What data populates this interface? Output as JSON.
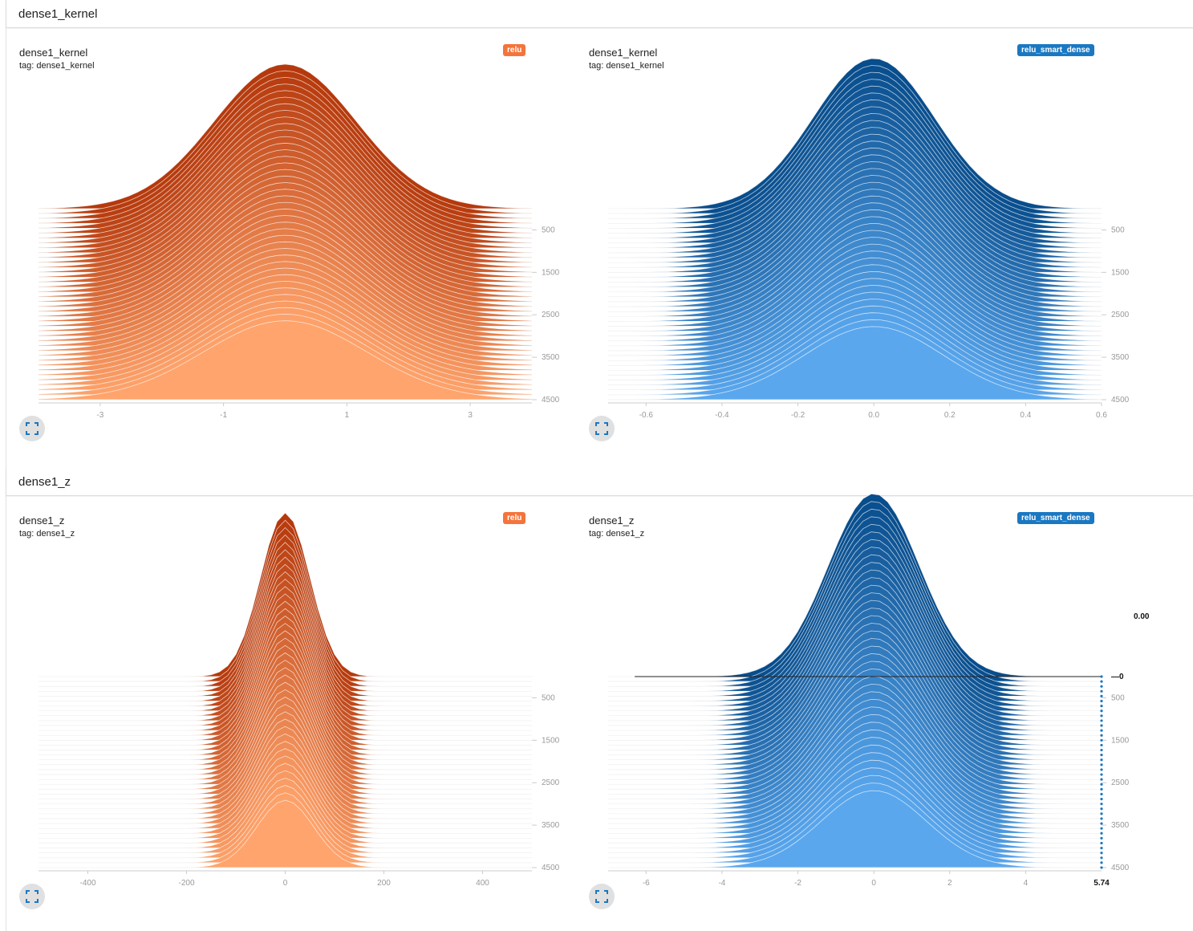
{
  "sections": [
    {
      "title": "dense1_kernel"
    },
    {
      "title": "dense1_z"
    }
  ],
  "cards": [
    {
      "title": "dense1_kernel",
      "tag": "tag: dense1_kernel",
      "run": "relu",
      "run_color": "#f4743b"
    },
    {
      "title": "dense1_kernel",
      "tag": "tag: dense1_kernel",
      "run": "relu_smart_dense",
      "run_color": "#1a78c2"
    },
    {
      "title": "dense1_z",
      "tag": "tag: dense1_z",
      "run": "relu",
      "run_color": "#f4743b"
    },
    {
      "title": "dense1_z",
      "tag": "tag: dense1_z",
      "run": "relu_smart_dense",
      "run_color": "#1a78c2"
    }
  ],
  "hover": {
    "value_label": "0.00",
    "step_label": "0",
    "x_label": "5.74"
  },
  "chart_data": [
    {
      "type": "area",
      "title": "dense1_kernel",
      "series_name": "relu",
      "x_ticks": [
        "-3",
        "-1",
        "1",
        "3"
      ],
      "x_tick_values": [
        -3,
        -1,
        1,
        3
      ],
      "xlim": [
        -4,
        4
      ],
      "y_ticks": [
        "500",
        "1500",
        "2500",
        "3500",
        "4500"
      ],
      "y_tick_values": [
        500,
        1500,
        2500,
        3500,
        4500
      ],
      "steps": [
        0,
        4500
      ],
      "peak_density_first_step": 0.75,
      "peak_density_last_step": 0.41,
      "center": 0,
      "spread": 1.15,
      "color_top": "#b5390c",
      "color_bottom": "#ffa46c"
    },
    {
      "type": "area",
      "title": "dense1_kernel",
      "series_name": "relu_smart_dense",
      "x_ticks": [
        "-0.6",
        "-0.4",
        "-0.2",
        "0.0",
        "0.2",
        "0.4",
        "0.6"
      ],
      "x_tick_values": [
        -0.6,
        -0.4,
        -0.2,
        0.0,
        0.2,
        0.4,
        0.6
      ],
      "xlim": [
        -0.7,
        0.6
      ],
      "y_ticks": [
        "500",
        "1500",
        "2500",
        "3500",
        "4500"
      ],
      "y_tick_values": [
        500,
        1500,
        2500,
        3500,
        4500
      ],
      "steps": [
        0,
        4500
      ],
      "peak_density_first_step": 0.78,
      "peak_density_last_step": 0.38,
      "center": 0,
      "spread": 0.16,
      "color_top": "#084d8c",
      "color_bottom": "#5aa7ee"
    },
    {
      "type": "area",
      "title": "dense1_z",
      "series_name": "relu",
      "x_ticks": [
        "-400",
        "-200",
        "0",
        "200",
        "400"
      ],
      "x_tick_values": [
        -400,
        -200,
        0,
        200,
        400
      ],
      "xlim": [
        -500,
        500
      ],
      "y_ticks": [
        "500",
        "1500",
        "2500",
        "3500",
        "4500"
      ],
      "y_tick_values": [
        500,
        1500,
        2500,
        3500,
        4500
      ],
      "steps": [
        0,
        4500
      ],
      "peak_density_first_step": 0.85,
      "peak_density_last_step": 0.35,
      "center": 0,
      "spread": 50,
      "color_top": "#b5390c",
      "color_bottom": "#ffa46c"
    },
    {
      "type": "area",
      "title": "dense1_z",
      "series_name": "relu_smart_dense",
      "x_ticks": [
        "-6",
        "-4",
        "-2",
        "0",
        "2",
        "4"
      ],
      "x_tick_values": [
        -6,
        -4,
        -2,
        0,
        2,
        4
      ],
      "xlim": [
        -7,
        6
      ],
      "y_ticks": [
        "500",
        "1500",
        "2500",
        "3500",
        "4500"
      ],
      "y_tick_values": [
        500,
        1500,
        2500,
        3500,
        4500
      ],
      "steps": [
        0,
        4500
      ],
      "peak_density_first_step": 0.95,
      "peak_density_last_step": 0.4,
      "center": 0,
      "spread": 1.2,
      "color_top": "#084d8c",
      "color_bottom": "#5aa7ee"
    }
  ]
}
